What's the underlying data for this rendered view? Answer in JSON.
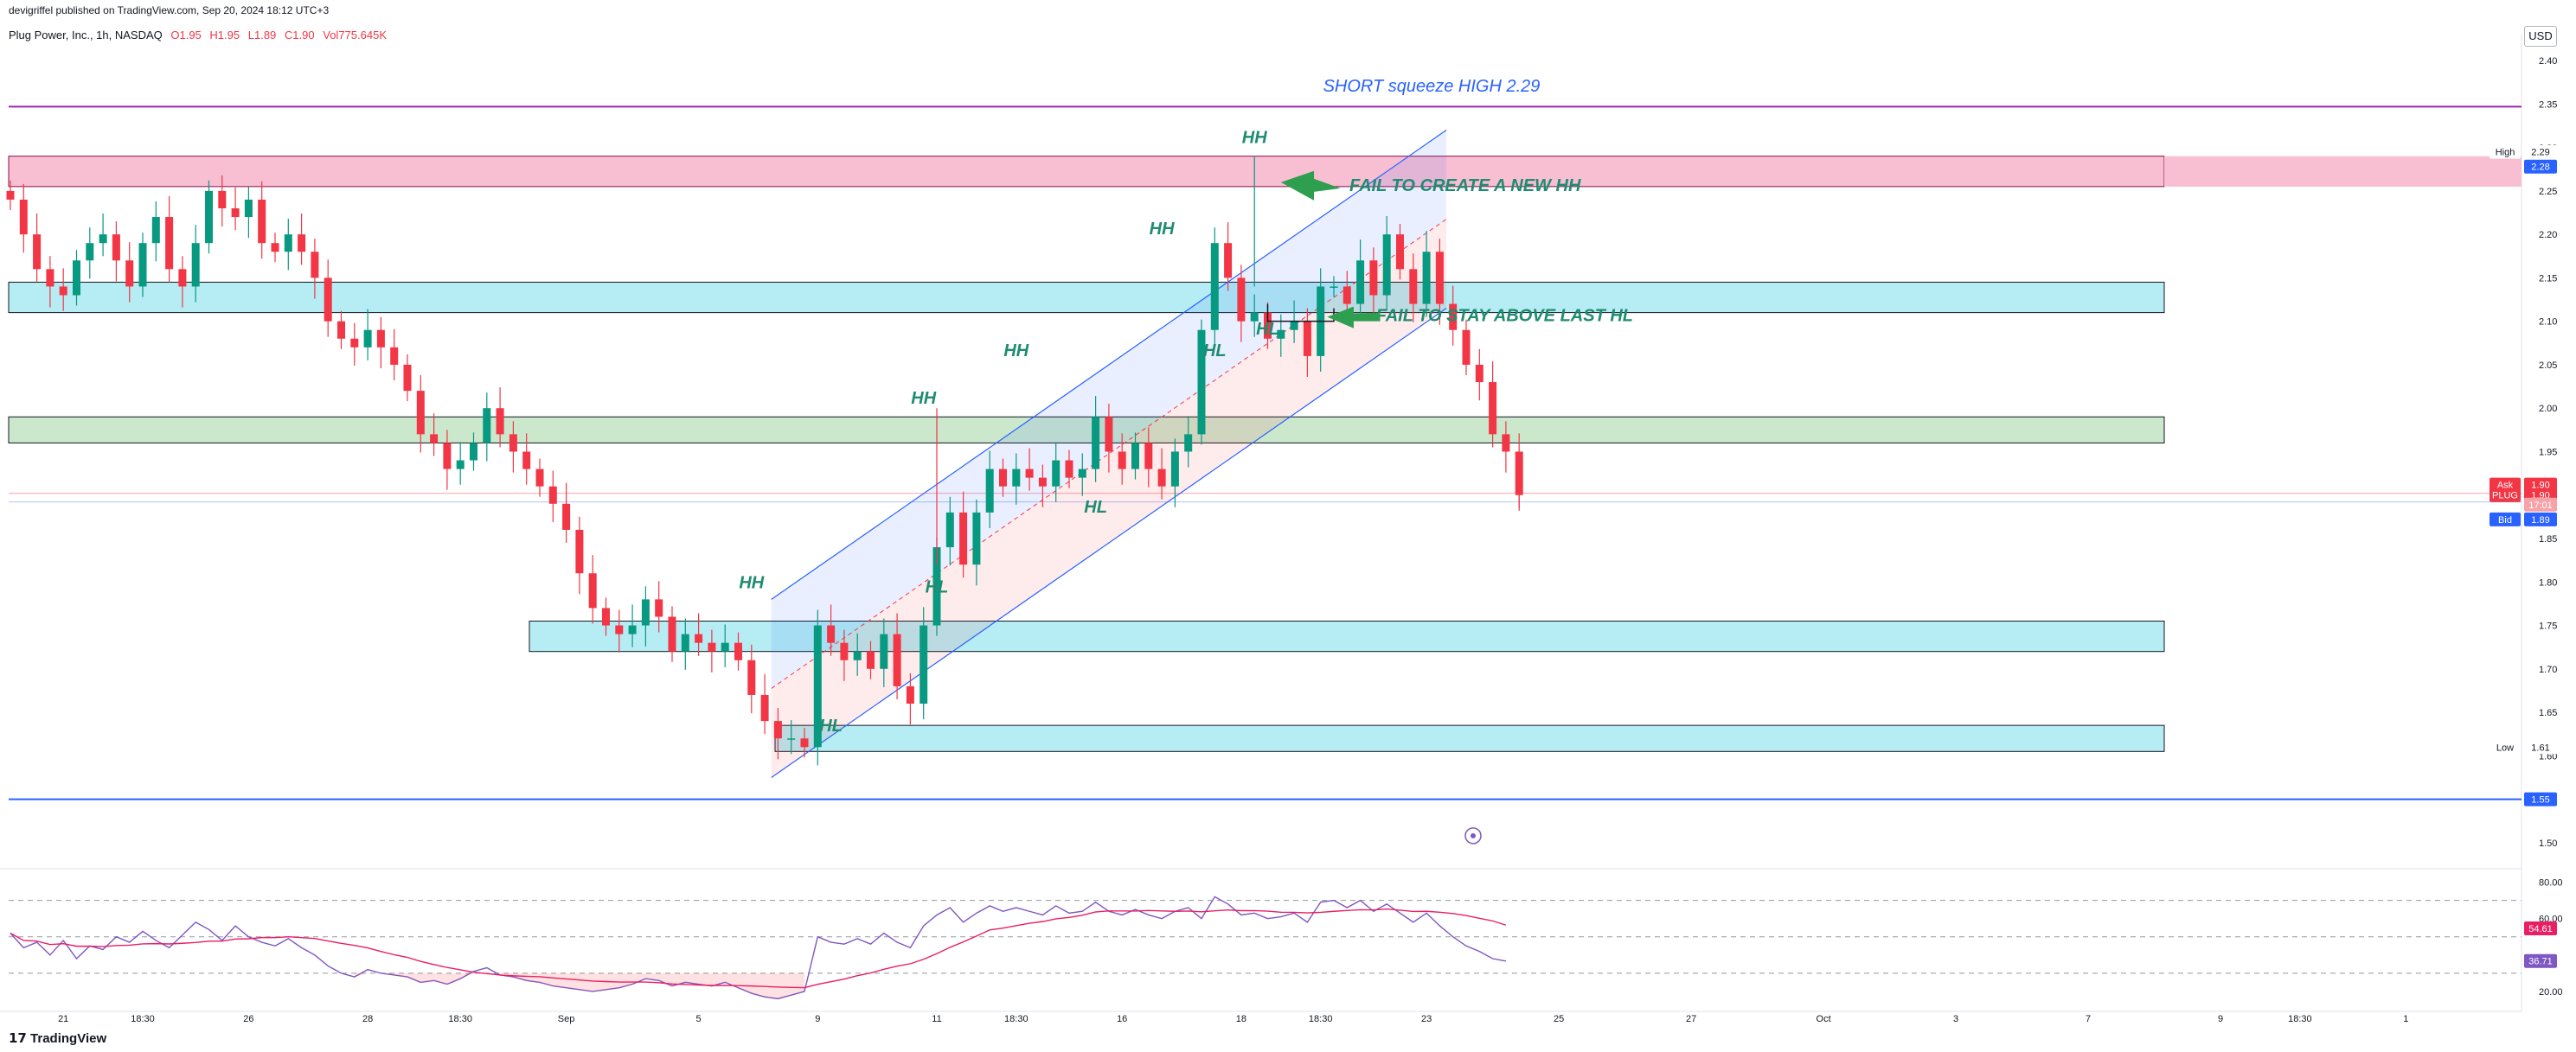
{
  "header": {
    "published_by": "devigriffel published on TradingView.com, Sep 20, 2024 18:12 UTC+3",
    "symbol": "Plug Power, Inc., 1h, NASDAQ",
    "open": "O1.95",
    "high": "H1.95",
    "low": "L1.89",
    "close": "C1.90",
    "volume": "Vol775.645K",
    "currency": "USD"
  },
  "footer": {
    "brand": "TradingView"
  },
  "colors": {
    "up": "#089981",
    "down": "#f23645",
    "annotation_text": "#1e8c70",
    "title_text": "#2962ff",
    "zone_cyan": "#b2ebf2",
    "zone_green": "#c8e6c9",
    "zone_pink": "#f8bbd0",
    "purple_line": "#9c27b0",
    "blue_line": "#2962ff",
    "rsi": "#7e57c2",
    "rsi_ma": "#e91e63"
  },
  "chart_data": {
    "type": "candlestick",
    "title": "SHORT squeeze HIGH 2.29",
    "ylim": [
      1.475,
      2.415
    ],
    "y_ticks": [
      "2.40",
      "2.35",
      "2.30",
      "2.25",
      "2.20",
      "2.15",
      "2.10",
      "2.05",
      "2.00",
      "1.95",
      "1.90",
      "1.85",
      "1.80",
      "1.75",
      "1.70",
      "1.65",
      "1.60",
      "1.55",
      "1.50"
    ],
    "x_tick_labels": [
      {
        "label": "21",
        "i": 4
      },
      {
        "label": "18:30",
        "i": 10
      },
      {
        "label": "26",
        "i": 18
      },
      {
        "label": "28",
        "i": 27
      },
      {
        "label": "18:30",
        "i": 34
      },
      {
        "label": "Sep",
        "i": 42
      },
      {
        "label": "5",
        "i": 52
      },
      {
        "label": "9",
        "i": 61
      },
      {
        "label": "11",
        "i": 70
      },
      {
        "label": "18:30",
        "i": 76
      },
      {
        "label": "16",
        "i": 84
      },
      {
        "label": "18",
        "i": 93
      },
      {
        "label": "18:30",
        "i": 99
      },
      {
        "label": "23",
        "i": 107
      },
      {
        "label": "25",
        "i": 117
      },
      {
        "label": "27",
        "i": 127
      },
      {
        "label": "Oct",
        "i": 137
      },
      {
        "label": "3",
        "i": 147
      },
      {
        "label": "7",
        "i": 157
      },
      {
        "label": "9",
        "i": 167
      },
      {
        "label": "18:30",
        "i": 173
      },
      {
        "label": "1",
        "i": 181
      }
    ],
    "closes": [
      2.24,
      2.2,
      2.16,
      2.14,
      2.13,
      2.17,
      2.19,
      2.2,
      2.17,
      2.14,
      2.19,
      2.22,
      2.16,
      2.14,
      2.19,
      2.25,
      2.23,
      2.22,
      2.24,
      2.19,
      2.18,
      2.2,
      2.18,
      2.15,
      2.1,
      2.08,
      2.07,
      2.09,
      2.07,
      2.05,
      2.02,
      1.97,
      1.96,
      1.93,
      1.94,
      1.96,
      2.0,
      1.97,
      1.95,
      1.93,
      1.91,
      1.89,
      1.86,
      1.81,
      1.77,
      1.75,
      1.74,
      1.75,
      1.78,
      1.76,
      1.72,
      1.74,
      1.73,
      1.72,
      1.73,
      1.71,
      1.67,
      1.64,
      1.62,
      1.62,
      1.61,
      1.75,
      1.73,
      1.71,
      1.72,
      1.7,
      1.74,
      1.68,
      1.66,
      1.75,
      1.84,
      1.88,
      1.82,
      1.88,
      1.93,
      1.91,
      1.93,
      1.92,
      1.91,
      1.94,
      1.92,
      1.93,
      1.99,
      1.95,
      1.93,
      1.96,
      1.93,
      1.91,
      1.95,
      1.97,
      2.09,
      2.19,
      2.15,
      2.1,
      2.11,
      2.08,
      2.09,
      2.1,
      2.06,
      2.14,
      2.14,
      2.12,
      2.17,
      2.13,
      2.2,
      2.16,
      2.12,
      2.18,
      2.12,
      2.09,
      2.05,
      2.03,
      1.97,
      1.95,
      1.9
    ],
    "highs": {
      "hh_peak": 2.29,
      "low_marker": 1.61
    },
    "zones": [
      {
        "name": "supply-zone-top",
        "from": 2.255,
        "to": 2.29,
        "color": "#f8bbd0"
      },
      {
        "name": "resistance-zone-2.13",
        "from": 2.11,
        "to": 2.145,
        "color": "#b2ebf2"
      },
      {
        "name": "zone-1.97",
        "from": 1.96,
        "to": 1.99,
        "color": "#c8e6c9"
      },
      {
        "name": "zone-1.74",
        "from": 1.72,
        "to": 1.755,
        "color": "#b2ebf2"
      },
      {
        "name": "zone-1.62",
        "from": 1.605,
        "to": 1.635,
        "color": "#b2ebf2"
      }
    ],
    "horizontal_lines": [
      {
        "name": "short-squeeze-line",
        "value": 2.347,
        "color": "#9c27b0"
      },
      {
        "name": "support-line-1.55",
        "value": 1.55,
        "color": "#2962ff"
      }
    ],
    "annotations": [
      {
        "text": "HH",
        "i": 56,
        "y": 1.793
      },
      {
        "text": "HL",
        "i": 62,
        "y": 1.628
      },
      {
        "text": "HH",
        "i": 69,
        "y": 2.005
      },
      {
        "text": "HL",
        "i": 70,
        "y": 1.788
      },
      {
        "text": "HH",
        "i": 76,
        "y": 2.06
      },
      {
        "text": "HL",
        "i": 82,
        "y": 1.88
      },
      {
        "text": "HH",
        "i": 87,
        "y": 2.2
      },
      {
        "text": "HL",
        "i": 91,
        "y": 2.06
      },
      {
        "text": "HH",
        "i": 94,
        "y": 2.305
      },
      {
        "text": "HL",
        "i": 95,
        "y": 2.085
      },
      {
        "text": "FAIL TO CREATE A NEW HH",
        "i": 100,
        "y": 2.25
      },
      {
        "text": "FAIL TO STAY ABOVE LAST HL",
        "i": 102,
        "y": 2.1
      }
    ],
    "price_labels": {
      "high_label": "High",
      "high_value": "2.29",
      "current_zone": "2.28",
      "ask_label": "Ask",
      "ask_value": "1.90",
      "symbol_label": "PLUG",
      "last_value": "1.90",
      "countdown": "17:01",
      "bid_label": "Bid",
      "bid_value": "1.89",
      "low_label": "Low",
      "low_value": "1.61",
      "support_value": "1.55"
    },
    "rsi": {
      "levels": [
        "80.00",
        "60.00",
        "20.00"
      ],
      "current": "36.71",
      "ma_current": "54.61",
      "values": [
        52,
        44,
        47,
        40,
        48,
        38,
        45,
        43,
        50,
        47,
        53,
        48,
        44,
        51,
        58,
        54,
        48,
        56,
        50,
        47,
        45,
        49,
        44,
        40,
        34,
        30,
        28,
        32,
        30,
        29,
        28,
        25,
        26,
        24,
        27,
        31,
        33,
        29,
        28,
        26,
        25,
        23,
        22,
        21,
        20,
        21,
        22,
        24,
        27,
        26,
        23,
        25,
        24,
        23,
        25,
        22,
        19,
        17,
        16,
        18,
        20,
        50,
        47,
        46,
        49,
        46,
        52,
        47,
        44,
        56,
        62,
        66,
        58,
        63,
        67,
        64,
        66,
        64,
        62,
        67,
        63,
        64,
        69,
        64,
        62,
        65,
        62,
        60,
        64,
        66,
        60,
        72,
        68,
        62,
        63,
        60,
        61,
        63,
        58,
        69,
        70,
        66,
        70,
        64,
        68,
        63,
        58,
        63,
        56,
        50,
        45,
        42,
        38,
        36.7
      ]
    }
  }
}
